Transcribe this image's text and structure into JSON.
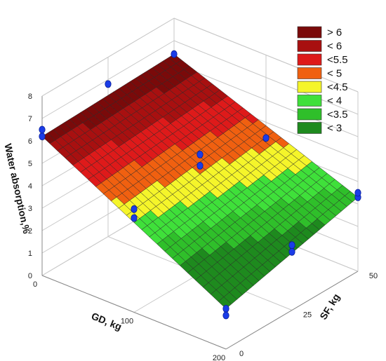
{
  "chart_data": {
    "type": "surface3d",
    "x_axis": {
      "label": "GD, kg",
      "ticks": [
        0,
        100,
        200
      ],
      "range": [
        0,
        200
      ]
    },
    "y_axis": {
      "label": "SF, kg",
      "ticks": [
        0,
        25,
        50
      ],
      "range": [
        0,
        50
      ]
    },
    "z_axis": {
      "label": "Water absorption,%",
      "ticks": [
        0,
        1,
        2,
        3,
        4,
        5,
        6,
        7,
        8
      ],
      "range": [
        0,
        8
      ]
    },
    "surface_corners": {
      "gd0_sf0": 6.2,
      "gd200_sf0": 1.8,
      "gd0_sf50": 6.4,
      "gd200_sf50": 3.3
    },
    "points": [
      {
        "gd": 0,
        "sf": 0,
        "wa": 6.2
      },
      {
        "gd": 0,
        "sf": 0,
        "wa": 6.5
      },
      {
        "gd": 0,
        "sf": 25,
        "wa": 6.8
      },
      {
        "gd": 0,
        "sf": 50,
        "wa": 6.4
      },
      {
        "gd": 100,
        "sf": 0,
        "wa": 4.6
      },
      {
        "gd": 100,
        "sf": 0,
        "wa": 4.2
      },
      {
        "gd": 100,
        "sf": 25,
        "wa": 4.8
      },
      {
        "gd": 100,
        "sf": 25,
        "wa": 5.3
      },
      {
        "gd": 100,
        "sf": 50,
        "wa": 4.3
      },
      {
        "gd": 200,
        "sf": 0,
        "wa": 1.8
      },
      {
        "gd": 200,
        "sf": 0,
        "wa": 1.5
      },
      {
        "gd": 200,
        "sf": 25,
        "wa": 2.6
      },
      {
        "gd": 200,
        "sf": 25,
        "wa": 2.9
      },
      {
        "gd": 200,
        "sf": 50,
        "wa": 3.3
      },
      {
        "gd": 200,
        "sf": 50,
        "wa": 3.5
      }
    ],
    "legend": {
      "placement": "top-right",
      "entries": [
        {
          "label": "> 6",
          "color": "#7a0a0a"
        },
        {
          "label": "< 6",
          "color": "#a81010"
        },
        {
          "label": "<5.5",
          "color": "#de1a1a"
        },
        {
          "label": "< 5",
          "color": "#f06010"
        },
        {
          "label": "<4.5",
          "color": "#f5f52a"
        },
        {
          "label": "< 4",
          "color": "#3fe03a"
        },
        {
          "label": "<3.5",
          "color": "#2fbf2a"
        },
        {
          "label": "< 3",
          "color": "#1e8a1e"
        }
      ]
    },
    "grid": true
  }
}
